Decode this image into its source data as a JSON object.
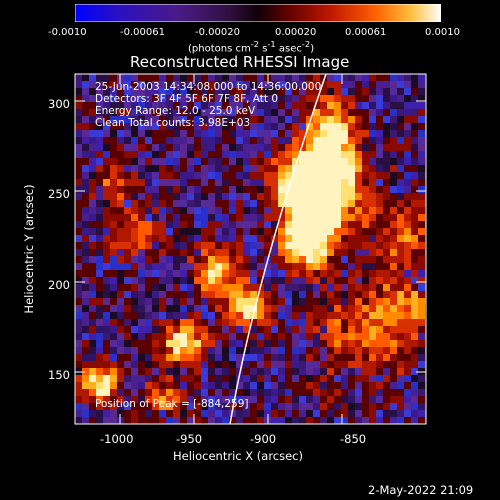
{
  "colorbar": {
    "tick_labels": [
      "-0.0010",
      "-0.00061",
      "-0.00020",
      "0.00020",
      "0.00061",
      "0.0010"
    ],
    "unit_html": "(photons cm<sup>-2</sup> s<sup>-1</sup> asec<sup>-2</sup>)",
    "colors": [
      "#0000ff",
      "#3a0a8a",
      "#4a1466",
      "#2a0a20",
      "#7a0000",
      "#c01000",
      "#ff4000",
      "#ff9a00",
      "#ffe060",
      "#ffffff"
    ]
  },
  "plot": {
    "title": "Reconstructed RHESSI Image",
    "xlabel": "Heliocentric X (arcsec)",
    "ylabel": "Heliocentric Y (arcsec)",
    "x_ticks": [
      "-1000",
      "-950",
      "-900",
      "-850"
    ],
    "y_ticks": [
      "150",
      "200",
      "250",
      "300"
    ]
  },
  "info": {
    "time_range": "25-Jun-2003 14:34:08.000 to 14:36:00.000",
    "detectors": "Detectors: 3F 4F 5F 6F 7F 8F, Att 0",
    "energy": "Energy Range: 12.0 - 25.0 keV",
    "method": "Clean    Total counts: 3.98E+03"
  },
  "peak": "Position of Peak = [-884,259]",
  "timestamp": "2-May-2022 21:09"
}
